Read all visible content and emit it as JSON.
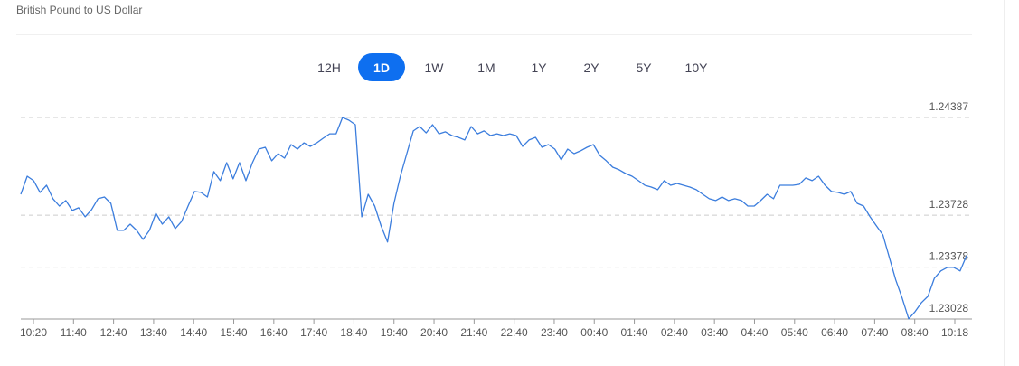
{
  "header": {
    "title": "British Pound to US Dollar"
  },
  "tabs": {
    "items": [
      "12H",
      "1D",
      "1W",
      "1M",
      "1Y",
      "2Y",
      "5Y",
      "10Y"
    ],
    "active": 1
  },
  "chart_data": {
    "type": "line",
    "x_labels": [
      "10:20",
      "11:40",
      "12:40",
      "13:40",
      "14:40",
      "15:40",
      "16:40",
      "17:40",
      "18:40",
      "19:40",
      "20:40",
      "21:40",
      "22:40",
      "23:40",
      "00:40",
      "01:40",
      "02:40",
      "03:40",
      "04:40",
      "05:40",
      "06:40",
      "07:40",
      "08:40",
      "10:18"
    ],
    "ylim": [
      1.23028,
      1.24387
    ],
    "yticks": [
      1.23028,
      1.23378,
      1.23728,
      1.24387
    ],
    "grid": true,
    "series": [
      {
        "color": "#3b7ddd",
        "values": [
          1.23869,
          1.23991,
          1.23961,
          1.23882,
          1.2393,
          1.23839,
          1.2379,
          1.23827,
          1.2376,
          1.23778,
          1.23717,
          1.23766,
          1.23839,
          1.23851,
          1.23808,
          1.23626,
          1.23626,
          1.23668,
          1.23626,
          1.23565,
          1.23626,
          1.23741,
          1.23668,
          1.23717,
          1.23638,
          1.23687,
          1.2379,
          1.23888,
          1.23882,
          1.23851,
          1.24022,
          1.23961,
          1.24082,
          1.23973,
          1.24082,
          1.23961,
          1.24082,
          1.24174,
          1.24186,
          1.24095,
          1.24143,
          1.24113,
          1.24204,
          1.24174,
          1.24216,
          1.24192,
          1.24216,
          1.24247,
          1.24277,
          1.24277,
          1.24387,
          1.24369,
          1.24338,
          1.23717,
          1.23869,
          1.2379,
          1.23656,
          1.23547,
          1.23808,
          1.23991,
          1.24143,
          1.24296,
          1.24326,
          1.24283,
          1.24338,
          1.24277,
          1.2429,
          1.24265,
          1.24253,
          1.24235,
          1.24326,
          1.24277,
          1.24296,
          1.24265,
          1.24277,
          1.24265,
          1.24277,
          1.24265,
          1.24192,
          1.24235,
          1.24253,
          1.24186,
          1.24204,
          1.24174,
          1.24101,
          1.24174,
          1.24143,
          1.24162,
          1.24186,
          1.24204,
          1.24131,
          1.24095,
          1.24052,
          1.24034,
          1.24009,
          1.23991,
          1.23961,
          1.2393,
          1.23918,
          1.239,
          1.23961,
          1.2393,
          1.23942,
          1.2393,
          1.23918,
          1.239,
          1.23869,
          1.23839,
          1.23827,
          1.23851,
          1.23827,
          1.23839,
          1.23827,
          1.2379,
          1.2379,
          1.23827,
          1.23869,
          1.23839,
          1.2393,
          1.2393,
          1.2393,
          1.23936,
          1.23979,
          1.23961,
          1.23991,
          1.2393,
          1.23888,
          1.23882,
          1.23869,
          1.23888,
          1.23808,
          1.2379,
          1.23717,
          1.23656,
          1.23595,
          1.23443,
          1.23291,
          1.23169,
          1.23029,
          1.23078,
          1.23139,
          1.23181,
          1.23303,
          1.23352,
          1.23376,
          1.23376,
          1.23352,
          1.23455
        ]
      }
    ]
  }
}
